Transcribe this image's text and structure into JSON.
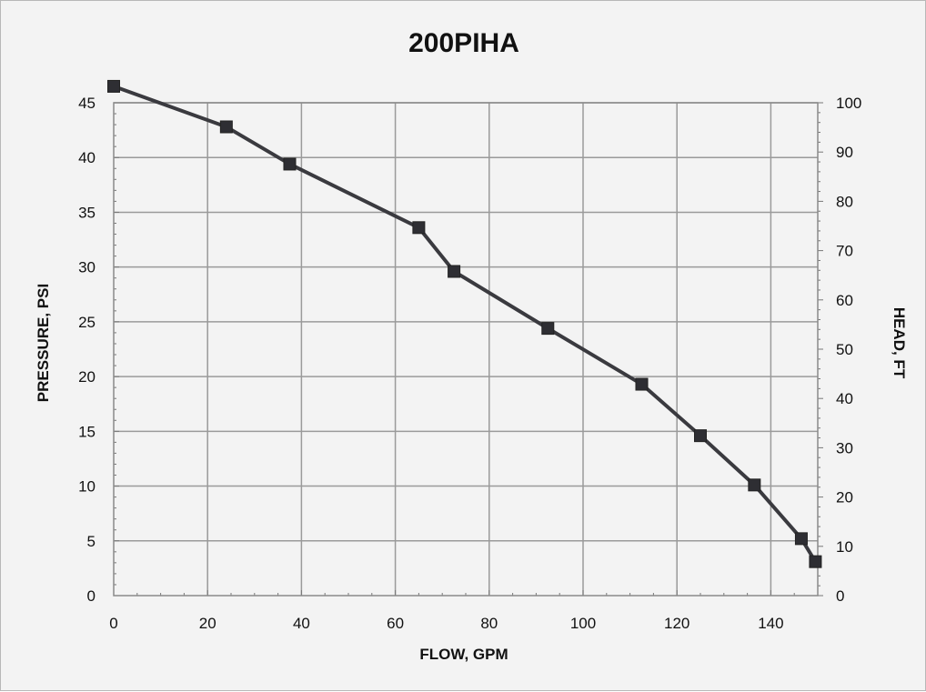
{
  "chart_data": {
    "type": "line",
    "title": "200PIHA",
    "xlabel": "FLOW, GPM",
    "ylabel": "PRESSURE, PSI",
    "y2label": "HEAD, FT",
    "xlim": [
      0,
      150
    ],
    "ylim": [
      0,
      45
    ],
    "y2lim": [
      0,
      100
    ],
    "xticks": [
      0,
      20,
      40,
      60,
      80,
      100,
      120,
      140
    ],
    "yticks": [
      0,
      5,
      10,
      15,
      20,
      25,
      30,
      35,
      40,
      45
    ],
    "y2ticks": [
      0,
      10,
      20,
      30,
      40,
      50,
      60,
      70,
      80,
      90,
      100
    ],
    "grid": true,
    "colors": {
      "line": "#3a3a3f",
      "marker": "#2e2e33",
      "grid": "#9a9a9a",
      "background": "#f3f3f3"
    },
    "series": [
      {
        "x": [
          0,
          24,
          37.5,
          65,
          72.5,
          92.5,
          112.5,
          125,
          136.5,
          146.5,
          149.5
        ],
        "y": [
          46.5,
          42.8,
          39.4,
          33.6,
          29.6,
          24.4,
          19.3,
          14.6,
          10.1,
          5.2,
          3.1
        ]
      }
    ]
  }
}
